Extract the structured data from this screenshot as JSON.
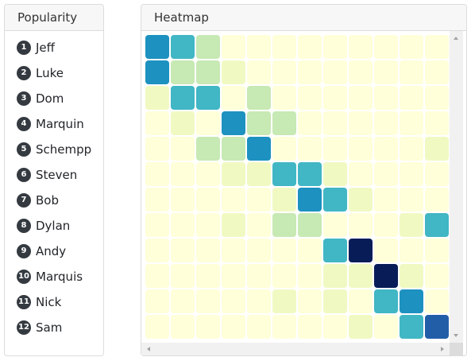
{
  "popularity": {
    "title": "Popularity",
    "items": [
      {
        "rank": "1",
        "name": "Jeff"
      },
      {
        "rank": "2",
        "name": "Luke"
      },
      {
        "rank": "3",
        "name": "Dom"
      },
      {
        "rank": "4",
        "name": "Marquin"
      },
      {
        "rank": "5",
        "name": "Schempp"
      },
      {
        "rank": "6",
        "name": "Steven"
      },
      {
        "rank": "7",
        "name": "Bob"
      },
      {
        "rank": "8",
        "name": "Dylan"
      },
      {
        "rank": "9",
        "name": "Andy"
      },
      {
        "rank": "10",
        "name": "Marquis"
      },
      {
        "rank": "11",
        "name": "Nick"
      },
      {
        "rank": "12",
        "name": "Sam"
      }
    ]
  },
  "heatmap": {
    "title": "Heatmap"
  },
  "chart_data": {
    "type": "heatmap",
    "scale": "0-6 levels from light yellow to dark navy",
    "colors": [
      "#ffffd9",
      "#f1f9c2",
      "#c7e9b4",
      "#7fcdbb",
      "#41b6c4",
      "#1d91c0",
      "#225ea8",
      "#081d58"
    ],
    "visible_columns": 12,
    "z": [
      [
        5,
        4,
        2,
        0,
        0,
        0,
        0,
        0,
        0,
        0,
        0,
        0
      ],
      [
        5,
        2,
        2,
        1,
        0,
        0,
        0,
        0,
        0,
        0,
        0,
        0
      ],
      [
        1,
        4,
        4,
        0,
        2,
        0,
        0,
        0,
        0,
        0,
        0,
        0
      ],
      [
        0,
        1,
        0,
        5,
        2,
        2,
        0,
        0,
        0,
        0,
        0,
        0
      ],
      [
        0,
        0,
        2,
        2,
        5,
        0,
        0,
        0,
        0,
        0,
        0,
        1
      ],
      [
        0,
        0,
        0,
        1,
        1,
        4,
        4,
        1,
        0,
        0,
        0,
        0
      ],
      [
        0,
        0,
        0,
        0,
        0,
        1,
        5,
        4,
        1,
        0,
        0,
        0
      ],
      [
        0,
        0,
        0,
        1,
        0,
        2,
        2,
        0,
        0,
        0,
        1,
        4
      ],
      [
        0,
        0,
        0,
        0,
        0,
        0,
        0,
        4,
        7,
        0,
        0,
        0
      ],
      [
        0,
        0,
        0,
        0,
        0,
        0,
        0,
        1,
        1,
        7,
        1,
        0
      ],
      [
        0,
        0,
        0,
        0,
        0,
        1,
        0,
        1,
        0,
        4,
        5,
        0
      ],
      [
        0,
        0,
        0,
        0,
        0,
        0,
        0,
        0,
        1,
        0,
        4,
        6
      ]
    ]
  }
}
